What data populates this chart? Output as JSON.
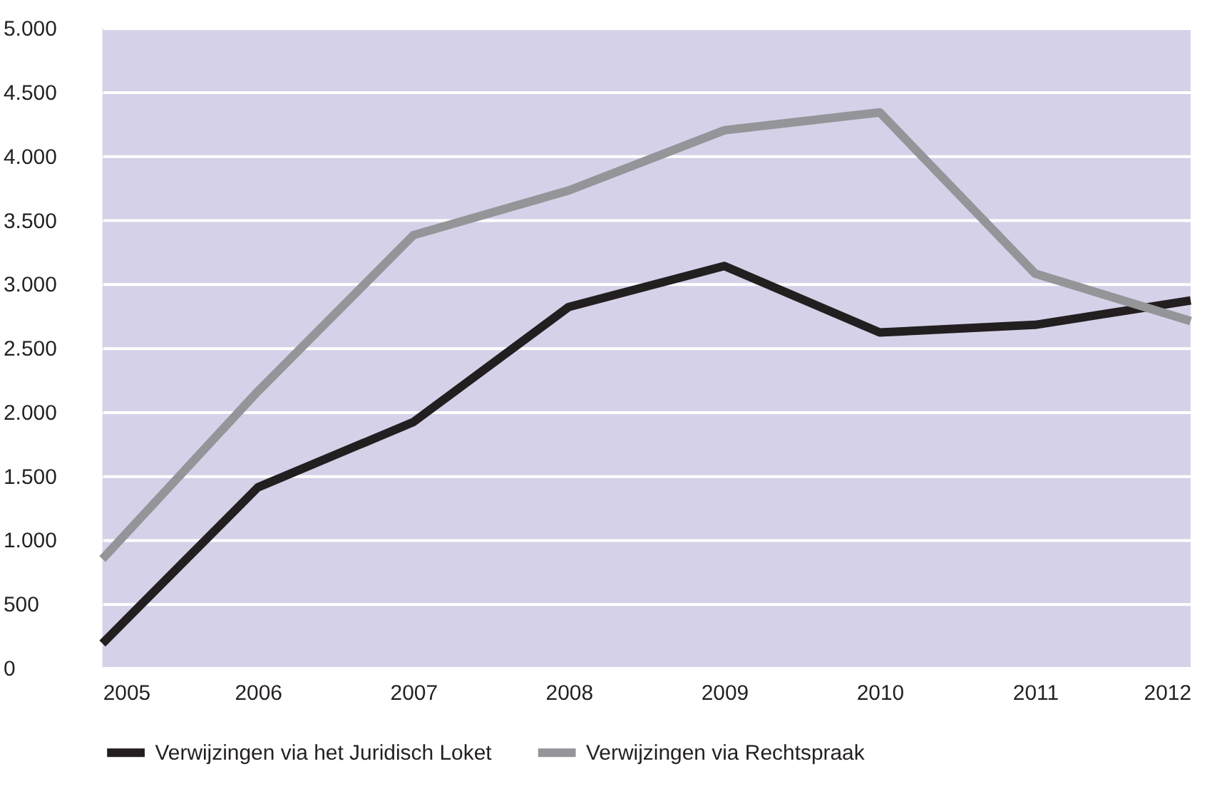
{
  "chart_data": {
    "type": "line",
    "x": [
      2005,
      2006,
      2007,
      2008,
      2009,
      2010,
      2011,
      2012
    ],
    "xlim": [
      2005,
      2012
    ],
    "xticks": [
      2005,
      2006,
      2007,
      2008,
      2009,
      2010,
      2011,
      2012
    ],
    "ylim": [
      0,
      5000
    ],
    "yticks": [
      {
        "value": 0,
        "label": "0"
      },
      {
        "value": 500,
        "label": "500"
      },
      {
        "value": 1000,
        "label": "1.000"
      },
      {
        "value": 1500,
        "label": "1.500"
      },
      {
        "value": 2000,
        "label": "2.000"
      },
      {
        "value": 2500,
        "label": "2.500"
      },
      {
        "value": 3000,
        "label": "3.000"
      },
      {
        "value": 3500,
        "label": "3.500"
      },
      {
        "value": 4000,
        "label": "4.000"
      },
      {
        "value": 4500,
        "label": "4.500"
      },
      {
        "value": 5000,
        "label": "5.000"
      }
    ],
    "grid": "y",
    "legend": "bottom",
    "marker": "none",
    "line_style": "solid",
    "series": [
      {
        "name": "Verwijzingen via het Juridisch Loket",
        "color": "#231f20",
        "values": [
          190,
          1410,
          1920,
          2820,
          3140,
          2620,
          2680,
          2870
        ]
      },
      {
        "name": "Verwijzingen via Rechtspraak",
        "color": "#939598",
        "values": [
          850,
          2160,
          3380,
          3730,
          4200,
          4340,
          3080,
          2710
        ]
      }
    ]
  }
}
